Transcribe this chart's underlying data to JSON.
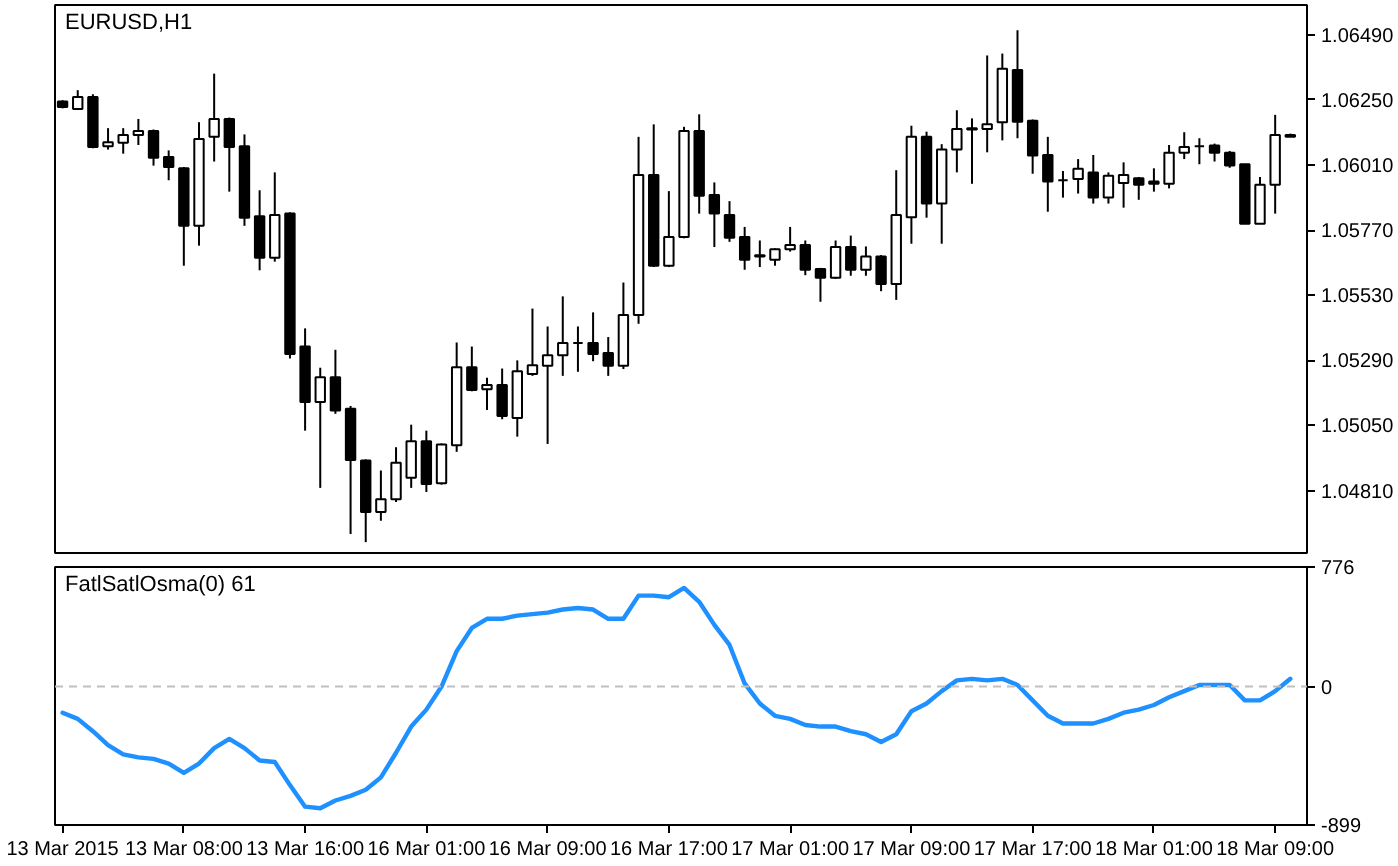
{
  "chart_data": [
    {
      "type": "candlestick",
      "title": "EURUSD,H1",
      "tick_labels": "y",
      "color": "#000000",
      "categories": [
        null,
        null,
        null,
        null,
        null,
        null,
        null,
        null,
        null,
        null,
        null,
        null,
        null,
        null,
        null,
        null,
        null,
        null,
        null,
        null,
        null,
        null,
        null,
        null,
        null,
        null,
        null,
        null,
        null,
        null,
        null,
        null,
        null,
        null,
        null,
        null,
        null,
        null,
        null,
        null,
        null,
        null,
        null,
        null,
        null,
        null,
        null,
        null,
        null,
        null,
        null,
        null,
        null,
        null,
        null,
        null,
        null,
        null,
        null,
        null,
        null,
        null,
        null,
        null,
        null,
        null,
        null,
        null,
        null,
        null,
        null,
        null,
        null,
        null,
        null,
        null,
        null,
        null,
        null,
        null,
        null,
        null
      ],
      "ohlc": [
        [
          1.06244,
          1.06249,
          1.06219,
          1.06224
        ],
        [
          1.06217,
          1.06286,
          1.06217,
          1.06261
        ],
        [
          1.06261,
          1.06271,
          1.06072,
          1.06077
        ],
        [
          1.06079,
          1.06146,
          1.06067,
          1.06094
        ],
        [
          1.06092,
          1.06146,
          1.06052,
          1.06121
        ],
        [
          1.06121,
          1.0618,
          1.06084,
          1.06136
        ],
        [
          1.06136,
          1.06141,
          1.06008,
          1.06037
        ],
        [
          1.0604,
          1.06064,
          1.05954,
          1.06003
        ],
        [
          1.05998,
          1.06003,
          1.05639,
          1.05786
        ],
        [
          1.05786,
          1.06168,
          1.05713,
          1.06106
        ],
        [
          1.06114,
          1.06347,
          1.06023,
          1.0618
        ],
        [
          1.0618,
          1.06185,
          1.05912,
          1.06077
        ],
        [
          1.06079,
          1.06123,
          1.05786,
          1.05816
        ],
        [
          1.05821,
          1.05917,
          1.05622,
          1.05668
        ],
        [
          1.05668,
          1.05983,
          1.05654,
          1.05826
        ],
        [
          1.05831,
          1.05836,
          1.05297,
          1.05314
        ],
        [
          1.05341,
          1.05408,
          1.05031,
          1.05137
        ],
        [
          1.05137,
          1.05263,
          1.0482,
          1.05228
        ],
        [
          1.05228,
          1.05329,
          1.05093,
          1.05105
        ],
        [
          1.05112,
          1.05122,
          1.0465,
          1.04923
        ],
        [
          1.04921,
          1.04925,
          1.0462,
          1.04731
        ],
        [
          1.04731,
          1.04884,
          1.04699,
          1.04778
        ],
        [
          1.04778,
          1.0497,
          1.04768,
          1.04913
        ],
        [
          1.04857,
          1.05053,
          1.0482,
          1.04992
        ],
        [
          1.04992,
          1.05031,
          1.04805,
          1.04834
        ],
        [
          1.04837,
          1.04984,
          1.04832,
          1.0498
        ],
        [
          1.04977,
          1.05356,
          1.04953,
          1.05265
        ],
        [
          1.05265,
          1.05341,
          1.05176,
          1.05181
        ],
        [
          1.05184,
          1.05226,
          1.05107,
          1.05199
        ],
        [
          1.05199,
          1.0526,
          1.05073,
          1.05085
        ],
        [
          1.05078,
          1.0529,
          1.05009,
          1.0525
        ],
        [
          1.0524,
          1.05481,
          1.05233,
          1.05272
        ],
        [
          1.0527,
          1.05415,
          1.04982,
          1.05309
        ],
        [
          1.05309,
          1.05526,
          1.05233,
          1.05354
        ],
        [
          1.05354,
          1.05415,
          1.05248,
          1.05354
        ],
        [
          1.05354,
          1.05467,
          1.05287,
          1.05314
        ],
        [
          1.05317,
          1.05376,
          1.05233,
          1.0527
        ],
        [
          1.0527,
          1.05577,
          1.05258,
          1.05457
        ],
        [
          1.05457,
          1.06114,
          1.05425,
          1.05973
        ],
        [
          1.05973,
          1.0616,
          1.05634,
          1.05639
        ],
        [
          1.05639,
          1.05914,
          1.05634,
          1.05745
        ],
        [
          1.05745,
          1.06151,
          1.0574,
          1.06136
        ],
        [
          1.06136,
          1.06197,
          1.05831,
          1.05897
        ],
        [
          1.059,
          1.05946,
          1.05708,
          1.05831
        ],
        [
          1.05826,
          1.05877,
          1.05727,
          1.05742
        ],
        [
          1.05745,
          1.05782,
          1.05624,
          1.05661
        ],
        [
          1.05678,
          1.05732,
          1.05634,
          1.05673
        ],
        [
          1.05661,
          1.05703,
          1.05639,
          1.057
        ],
        [
          1.057,
          1.05782,
          1.05691,
          1.05715
        ],
        [
          1.05715,
          1.05732,
          1.05604,
          1.05624
        ],
        [
          1.05627,
          1.05631,
          1.05506,
          1.05595
        ],
        [
          1.05595,
          1.05732,
          1.0559,
          1.05708
        ],
        [
          1.05708,
          1.0575,
          1.05602,
          1.05624
        ],
        [
          1.05624,
          1.0571,
          1.05602,
          1.05673
        ],
        [
          1.05673,
          1.05678,
          1.05545,
          1.05572
        ],
        [
          1.05572,
          1.05991,
          1.05513,
          1.05826
        ],
        [
          1.05818,
          1.06155,
          1.0572,
          1.06114
        ],
        [
          1.06114,
          1.06133,
          1.05816,
          1.05868
        ],
        [
          1.05868,
          1.06087,
          1.0572,
          1.06067
        ],
        [
          1.06067,
          1.06212,
          1.05983,
          1.06143
        ],
        [
          1.06141,
          1.06182,
          1.05941,
          1.06146
        ],
        [
          1.06143,
          1.06414,
          1.06057,
          1.0616
        ],
        [
          1.06168,
          1.06421,
          1.06101,
          1.06365
        ],
        [
          1.0636,
          1.06507,
          1.06109,
          1.0617
        ],
        [
          1.06173,
          1.06178,
          1.05978,
          1.06045
        ],
        [
          1.06047,
          1.06114,
          1.05838,
          1.05949
        ],
        [
          1.05954,
          1.05988,
          1.0589,
          1.05954
        ],
        [
          1.05959,
          1.06032,
          1.05905,
          1.05996
        ],
        [
          1.05983,
          1.06047,
          1.05868,
          1.0589
        ],
        [
          1.0589,
          1.05983,
          1.05868,
          1.05971
        ],
        [
          1.05944,
          1.0602,
          1.05853,
          1.05973
        ],
        [
          1.05961,
          1.05966,
          1.05882,
          1.05937
        ],
        [
          1.05949,
          1.05998,
          1.05912,
          1.05941
        ],
        [
          1.05941,
          1.06084,
          1.05924,
          1.06055
        ],
        [
          1.06055,
          1.06131,
          1.06032,
          1.06077
        ],
        [
          1.06079,
          1.06109,
          1.06013,
          1.06079
        ],
        [
          1.06082,
          1.06089,
          1.06023,
          1.06055
        ],
        [
          1.06055,
          1.06062,
          1.06,
          1.06008
        ],
        [
          1.06013,
          1.06013,
          1.05794,
          1.05794
        ],
        [
          1.05794,
          1.05966,
          1.05794,
          1.05937
        ],
        [
          1.05937,
          1.06195,
          1.05831,
          1.06121
        ],
        [
          1.06121,
          1.06126,
          1.06114,
          1.06114
        ]
      ],
      "colors": [
        "#000000",
        "#ffffff",
        "#000000",
        "#ffffff",
        "#ffffff",
        "#ffffff",
        "#000000",
        "#000000",
        "#000000",
        "#ffffff",
        "#ffffff",
        "#000000",
        "#000000",
        "#000000",
        "#ffffff",
        "#000000",
        "#000000",
        "#ffffff",
        "#000000",
        "#000000",
        "#000000",
        "#ffffff",
        "#ffffff",
        "#ffffff",
        "#000000",
        "#ffffff",
        "#ffffff",
        "#000000",
        "#ffffff",
        "#000000",
        "#ffffff",
        "#ffffff",
        "#ffffff",
        "#ffffff",
        "#000000",
        "#000000",
        "#000000",
        "#ffffff",
        "#ffffff",
        "#000000",
        "#ffffff",
        "#ffffff",
        "#000000",
        "#000000",
        "#000000",
        "#000000",
        "#000000",
        "#ffffff",
        "#ffffff",
        "#000000",
        "#000000",
        "#ffffff",
        "#000000",
        "#ffffff",
        "#000000",
        "#ffffff",
        "#ffffff",
        "#000000",
        "#ffffff",
        "#ffffff",
        "#ffffff",
        "#ffffff",
        "#ffffff",
        "#000000",
        "#000000",
        "#000000",
        "#000000",
        "#ffffff",
        "#000000",
        "#ffffff",
        "#ffffff",
        "#000000",
        "#000000",
        "#ffffff",
        "#ffffff",
        "#000000",
        "#000000",
        "#000000",
        "#000000",
        "#ffffff",
        "#ffffff",
        "#000000"
      ],
      "ylim": [
        1.0458,
        1.066
      ],
      "yticks": [
        {
          "value": 1.0649,
          "label": "1.06490"
        },
        {
          "value": 1.0625,
          "label": "1.06250"
        },
        {
          "value": 1.0601,
          "label": "1.06010"
        },
        {
          "value": 1.0577,
          "label": "1.05770"
        },
        {
          "value": 1.0553,
          "label": "1.05530"
        },
        {
          "value": 1.0529,
          "label": "1.05290"
        },
        {
          "value": 1.0505,
          "label": "1.05050"
        },
        {
          "value": 1.0481,
          "label": "1.04810"
        }
      ]
    },
    {
      "type": "line",
      "title": "FatlSatlOsma(0) 61",
      "categories": [
        "13 Mar 2015",
        null,
        null,
        null,
        null,
        null,
        null,
        null,
        "13 Mar 08:00",
        null,
        null,
        null,
        null,
        null,
        null,
        null,
        "13 Mar 16:00",
        null,
        null,
        null,
        null,
        null,
        null,
        null,
        "16 Mar 01:00",
        null,
        null,
        null,
        null,
        null,
        null,
        null,
        "16 Mar 09:00",
        null,
        null,
        null,
        null,
        null,
        null,
        null,
        "16 Mar 17:00",
        null,
        null,
        null,
        null,
        null,
        null,
        null,
        "17 Mar 01:00",
        null,
        null,
        null,
        null,
        null,
        null,
        null,
        "17 Mar 09:00",
        null,
        null,
        null,
        null,
        null,
        null,
        null,
        "17 Mar 17:00",
        null,
        null,
        null,
        null,
        null,
        null,
        null,
        "18 Mar 01:00",
        null,
        null,
        null,
        null,
        null,
        null,
        null,
        "18 Mar 09:00",
        null
      ],
      "series": [
        {
          "color": "#1e90ff",
          "values": [
            -170,
            -210,
            -290,
            -380,
            -440,
            -460,
            -470,
            -500,
            -560,
            -500,
            -400,
            -340,
            -400,
            -480,
            -490,
            -640,
            -780,
            -790,
            -740,
            -710,
            -670,
            -590,
            -430,
            -260,
            -150,
            0,
            230,
            380,
            440,
            440,
            460,
            470,
            480,
            500,
            510,
            500,
            440,
            440,
            590,
            590,
            580,
            640,
            550,
            400,
            270,
            20,
            -110,
            -190,
            -210,
            -250,
            -260,
            -260,
            -290,
            -310,
            -360,
            -310,
            -160,
            -110,
            -30,
            40,
            50,
            40,
            50,
            10,
            -90,
            -190,
            -240,
            -240,
            -240,
            -210,
            -170,
            -150,
            -120,
            -70,
            -30,
            10,
            10,
            10,
            -90,
            -90,
            -30,
            50
          ]
        }
      ],
      "ylim": [
        -899,
        776
      ],
      "yticks": [
        -899,
        0,
        776
      ],
      "ref_lines": [
        {
          "axis": "y",
          "value": 0,
          "color": "#c0c0c0",
          "line_style": "dashed"
        }
      ]
    }
  ]
}
